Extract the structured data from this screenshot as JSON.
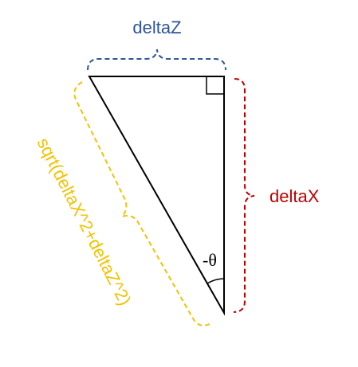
{
  "labels": {
    "top": "deltaZ",
    "right": "deltaX",
    "hypotenuse": "sqrt(deltaX^2+deltaZ^2)",
    "angle": "-θ"
  },
  "colors": {
    "top": "#2f5597",
    "right": "#c00000",
    "hypotenuse": "#f2c200",
    "triangle": "#000000"
  }
}
